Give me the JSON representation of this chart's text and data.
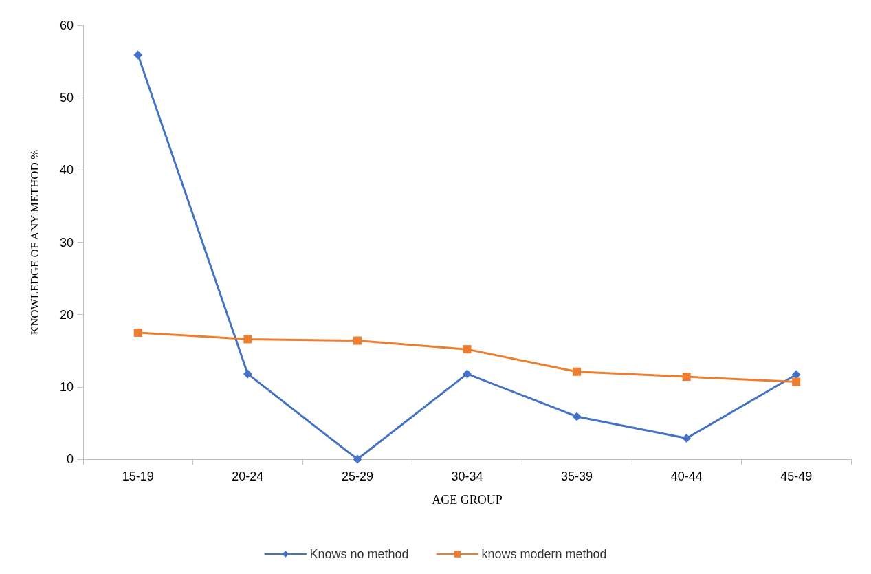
{
  "chart_data": {
    "type": "line",
    "xlabel": "AGE GROUP",
    "ylabel": "KNOWLEDGE OF ANY METHOD %",
    "categories": [
      "15-19",
      "20-24",
      "25-29",
      "30-34",
      "35-39",
      "40-44",
      "45-49"
    ],
    "series": [
      {
        "name": "Knows no method",
        "color": "#4472c4",
        "marker": "diamond",
        "values": [
          55.9,
          11.8,
          0,
          11.8,
          5.9,
          2.9,
          11.7
        ]
      },
      {
        "name": "knows modern method",
        "color": "#ed7d31",
        "marker": "square",
        "values": [
          17.5,
          16.6,
          16.4,
          15.2,
          12.1,
          11.4,
          10.7
        ]
      }
    ],
    "ylim": [
      0,
      60
    ],
    "yticks": [
      0,
      10,
      20,
      30,
      40,
      50,
      60
    ],
    "grid": false,
    "legend": "bottom",
    "line_style": "solid"
  }
}
